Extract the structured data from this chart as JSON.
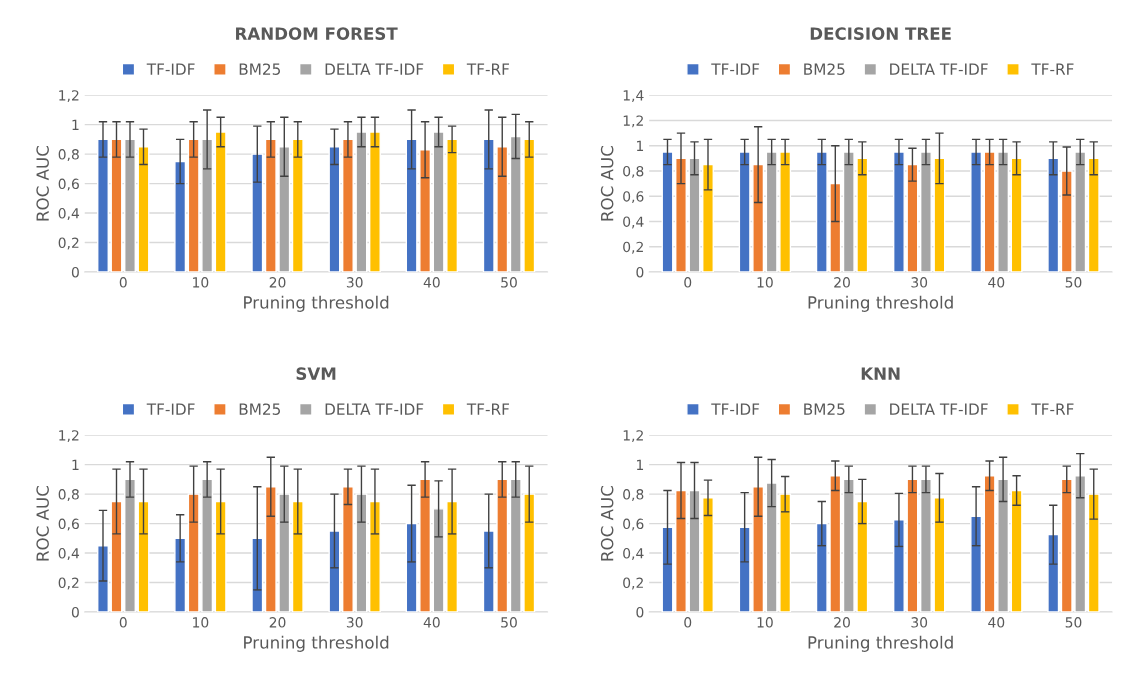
{
  "chart_data": [
    {
      "type": "bar",
      "title": "RANDOM FOREST",
      "xlabel": "Pruning threshold",
      "ylabel": "ROC AUC",
      "categories": [
        "0",
        "10",
        "20",
        "30",
        "40",
        "50"
      ],
      "ylim": [
        0,
        1.2
      ],
      "yticks": [
        0,
        {
          "value": 0.2,
          "label": "0,2"
        },
        {
          "value": 0.4,
          "label": "0,4"
        },
        {
          "value": 0.6,
          "label": "0,6"
        },
        {
          "value": 0.8,
          "label": "0,8"
        },
        1,
        {
          "value": 1.2,
          "label": "1,2"
        }
      ],
      "grid": "y",
      "legend": "top",
      "series": [
        {
          "name": "TF-IDF",
          "color": "#4472c4",
          "values": [
            0.9,
            0.75,
            0.8,
            0.85,
            0.9,
            0.9
          ],
          "errors": [
            0.12,
            0.15,
            0.19,
            0.12,
            0.2,
            0.2
          ]
        },
        {
          "name": "BM25",
          "color": "#ed7d31",
          "values": [
            0.9,
            0.9,
            0.9,
            0.9,
            0.83,
            0.85
          ],
          "errors": [
            0.12,
            0.12,
            0.12,
            0.12,
            0.19,
            0.2
          ]
        },
        {
          "name": "DELTA TF-IDF",
          "color": "#a5a5a5",
          "values": [
            0.9,
            0.9,
            0.85,
            0.95,
            0.95,
            0.92
          ],
          "errors": [
            0.12,
            0.2,
            0.2,
            0.1,
            0.1,
            0.15
          ]
        },
        {
          "name": "TF-RF",
          "color": "#ffc000",
          "values": [
            0.85,
            0.95,
            0.9,
            0.95,
            0.9,
            0.9
          ],
          "errors": [
            0.12,
            0.1,
            0.12,
            0.1,
            0.09,
            0.12
          ]
        }
      ]
    },
    {
      "type": "bar",
      "title": "DECISION TREE",
      "xlabel": "Pruning threshold",
      "ylabel": "ROC AUC",
      "categories": [
        "0",
        "10",
        "20",
        "30",
        "40",
        "50"
      ],
      "ylim": [
        0,
        1.4
      ],
      "yticks": [
        0,
        {
          "value": 0.2,
          "label": "0,2"
        },
        {
          "value": 0.4,
          "label": "0,4"
        },
        {
          "value": 0.6,
          "label": "0,6"
        },
        {
          "value": 0.8,
          "label": "0,8"
        },
        1,
        {
          "value": 1.2,
          "label": "1,2"
        },
        {
          "value": 1.4,
          "label": "1,4"
        }
      ],
      "grid": "y",
      "legend": "top",
      "series": [
        {
          "name": "TF-IDF",
          "color": "#4472c4",
          "values": [
            0.95,
            0.95,
            0.95,
            0.95,
            0.95,
            0.9
          ],
          "errors": [
            0.1,
            0.1,
            0.1,
            0.1,
            0.1,
            0.13
          ]
        },
        {
          "name": "BM25",
          "color": "#ed7d31",
          "values": [
            0.9,
            0.85,
            0.7,
            0.85,
            0.95,
            0.8
          ],
          "errors": [
            0.2,
            0.3,
            0.3,
            0.13,
            0.1,
            0.19
          ]
        },
        {
          "name": "DELTA TF-IDF",
          "color": "#a5a5a5",
          "values": [
            0.9,
            0.95,
            0.95,
            0.95,
            0.95,
            0.95
          ],
          "errors": [
            0.13,
            0.1,
            0.1,
            0.1,
            0.1,
            0.1
          ]
        },
        {
          "name": "TF-RF",
          "color": "#ffc000",
          "values": [
            0.85,
            0.95,
            0.9,
            0.9,
            0.9,
            0.9
          ],
          "errors": [
            0.2,
            0.1,
            0.13,
            0.2,
            0.13,
            0.13
          ]
        }
      ]
    },
    {
      "type": "bar",
      "title": "SVM",
      "xlabel": "Pruning threshold",
      "ylabel": "ROC AUC",
      "categories": [
        "0",
        "10",
        "20",
        "30",
        "40",
        "50"
      ],
      "ylim": [
        0,
        1.2
      ],
      "yticks": [
        0,
        {
          "value": 0.2,
          "label": "0,2"
        },
        {
          "value": 0.4,
          "label": "0,4"
        },
        {
          "value": 0.6,
          "label": "0,6"
        },
        {
          "value": 0.8,
          "label": "0,8"
        },
        1,
        {
          "value": 1.2,
          "label": "1,2"
        }
      ],
      "grid": "y",
      "legend": "top",
      "series": [
        {
          "name": "TF-IDF",
          "color": "#4472c4",
          "values": [
            0.45,
            0.5,
            0.5,
            0.55,
            0.6,
            0.55
          ],
          "errors": [
            0.24,
            0.16,
            0.35,
            0.25,
            0.26,
            0.25
          ]
        },
        {
          "name": "BM25",
          "color": "#ed7d31",
          "values": [
            0.75,
            0.8,
            0.85,
            0.85,
            0.9,
            0.9
          ],
          "errors": [
            0.22,
            0.19,
            0.2,
            0.12,
            0.12,
            0.12
          ]
        },
        {
          "name": "DELTA TF-IDF",
          "color": "#a5a5a5",
          "values": [
            0.9,
            0.9,
            0.8,
            0.8,
            0.7,
            0.9
          ],
          "errors": [
            0.12,
            0.12,
            0.19,
            0.19,
            0.19,
            0.12
          ]
        },
        {
          "name": "TF-RF",
          "color": "#ffc000",
          "values": [
            0.75,
            0.75,
            0.75,
            0.75,
            0.75,
            0.8
          ],
          "errors": [
            0.22,
            0.22,
            0.22,
            0.22,
            0.22,
            0.19
          ]
        }
      ]
    },
    {
      "type": "bar",
      "title": "KNN",
      "xlabel": "Pruning threshold",
      "ylabel": "ROC AUC",
      "categories": [
        "0",
        "10",
        "20",
        "30",
        "40",
        "50"
      ],
      "ylim": [
        0,
        1.2
      ],
      "yticks": [
        0,
        {
          "value": 0.2,
          "label": "0,2"
        },
        {
          "value": 0.4,
          "label": "0,4"
        },
        {
          "value": 0.6,
          "label": "0,6"
        },
        {
          "value": 0.8,
          "label": "0,8"
        },
        1,
        {
          "value": 1.2,
          "label": "1,2"
        }
      ],
      "grid": "y",
      "legend": "top",
      "series": [
        {
          "name": "TF-IDF",
          "color": "#4472c4",
          "values": [
            0.575,
            0.575,
            0.6,
            0.625,
            0.65,
            0.525
          ],
          "errors": [
            0.25,
            0.235,
            0.15,
            0.18,
            0.2,
            0.2
          ]
        },
        {
          "name": "BM25",
          "color": "#ed7d31",
          "values": [
            0.825,
            0.85,
            0.925,
            0.9,
            0.925,
            0.9
          ],
          "errors": [
            0.19,
            0.2,
            0.1,
            0.09,
            0.1,
            0.09
          ]
        },
        {
          "name": "DELTA TF-IDF",
          "color": "#a5a5a5",
          "values": [
            0.825,
            0.875,
            0.9,
            0.9,
            0.9,
            0.925
          ],
          "errors": [
            0.19,
            0.16,
            0.09,
            0.09,
            0.15,
            0.15
          ]
        },
        {
          "name": "TF-RF",
          "color": "#ffc000",
          "values": [
            0.775,
            0.8,
            0.75,
            0.775,
            0.825,
            0.8
          ],
          "errors": [
            0.12,
            0.12,
            0.15,
            0.165,
            0.1,
            0.17
          ]
        }
      ]
    }
  ]
}
